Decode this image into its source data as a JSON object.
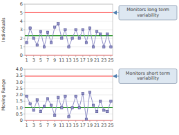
{
  "chart_data": [
    {
      "type": "line",
      "marker": "square",
      "color": "#9090c8",
      "ylabel": "Individuals",
      "annotation": "Monitors long term variability",
      "x": [
        1,
        2,
        3,
        4,
        5,
        6,
        7,
        8,
        9,
        10,
        11,
        12,
        13,
        14,
        15,
        16,
        17,
        18,
        19,
        20,
        21,
        22,
        23,
        24,
        25
      ],
      "values": [
        1.5,
        3.2,
        2.0,
        1.2,
        2.8,
        1.0,
        2.7,
        1.5,
        3.3,
        3.7,
        2.0,
        3.0,
        1.0,
        2.0,
        3.0,
        2.0,
        3.0,
        1.5,
        3.2,
        1.0,
        2.8,
        2.5,
        1.0,
        2.5,
        1.0
      ],
      "reference_lines": [
        {
          "value": 5.0,
          "color": "#FF4444"
        },
        {
          "value": 0.0,
          "color": "#FF4444"
        },
        {
          "value": 2.3,
          "color": "#008000"
        }
      ],
      "xlim": [
        0.5,
        25.5
      ],
      "xticks": [
        1,
        3,
        5,
        7,
        9,
        11,
        13,
        15,
        17,
        19,
        21,
        23,
        25
      ],
      "ylim": [
        0,
        6
      ],
      "yticks": [
        0,
        1,
        2,
        3,
        4,
        5,
        6
      ],
      "grid": true
    },
    {
      "type": "line",
      "marker": "square",
      "color": "#9090c8",
      "ylabel": "Moving Range",
      "annotation": "Monitors short term variability",
      "x": [
        1,
        2,
        3,
        4,
        5,
        6,
        7,
        8,
        9,
        10,
        11,
        12,
        13,
        14,
        15,
        16,
        17,
        18,
        19,
        20,
        21,
        22,
        23,
        24,
        25
      ],
      "values": [
        1.9,
        1.3,
        0.8,
        1.6,
        0.7,
        1.1,
        1.7,
        1.2,
        0.4,
        1.8,
        1.0,
        1.9,
        0.3,
        1.0,
        1.9,
        1.0,
        2.1,
        0.1,
        2.2,
        1.2,
        0.7,
        1.5,
        0.8,
        0.7,
        1.5
      ],
      "reference_lines": [
        {
          "value": 3.46,
          "color": "#FF4444"
        },
        {
          "value": 0.0,
          "color": "#FF4444"
        },
        {
          "value": 1.0,
          "color": "#008000"
        }
      ],
      "xlim": [
        0.5,
        25.5
      ],
      "xticks": [
        1,
        3,
        5,
        7,
        9,
        11,
        13,
        15,
        17,
        19,
        21,
        23,
        25
      ],
      "ylim": [
        0,
        4
      ],
      "yticks": [
        0,
        0.5,
        {
          "value": 1.0,
          "label": "1.0"
        },
        1.5,
        {
          "value": 2.0,
          "label": "2.0"
        },
        2.5,
        {
          "value": 3.0,
          "label": "3.0"
        },
        3.5,
        {
          "value": 4.0,
          "label": "4.0"
        }
      ],
      "grid": true
    }
  ]
}
